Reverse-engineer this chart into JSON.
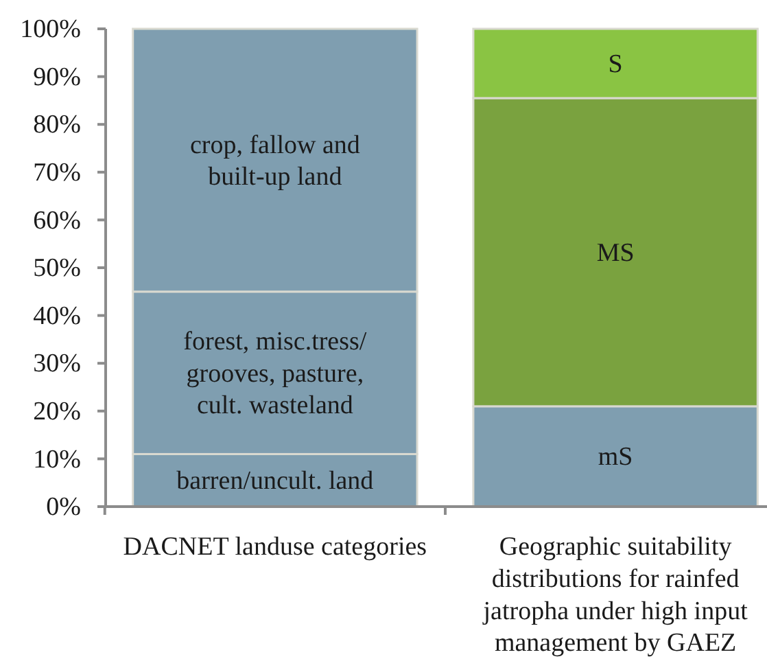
{
  "chart_data": {
    "type": "bar",
    "stacked": true,
    "categories": [
      "DACNET landuse categories",
      "Geographic suitability distributions for rainfed jatropha under high input management by GAEZ"
    ],
    "series": [
      {
        "name": "barren/uncult. land",
        "color": "#7f9eb0",
        "values": [
          11,
          null
        ]
      },
      {
        "name": "forest, misc.tress/ grooves, pasture, cult. wasteland",
        "color": "#7f9eb0",
        "values": [
          34,
          null
        ]
      },
      {
        "name": "crop, fallow and built-up land",
        "color": "#7f9eb0",
        "values": [
          55,
          null
        ]
      },
      {
        "name": "mS",
        "color": "#7f9eb0",
        "values": [
          null,
          21
        ]
      },
      {
        "name": "MS",
        "color": "#7aa23f",
        "values": [
          null,
          64.5
        ]
      },
      {
        "name": "S",
        "color": "#8ac443",
        "values": [
          null,
          14.5
        ]
      }
    ],
    "ylim": [
      0,
      100
    ],
    "yticks": [
      {
        "value": 0,
        "label": "0%"
      },
      {
        "value": 10,
        "label": "10%"
      },
      {
        "value": 20,
        "label": "20%"
      },
      {
        "value": 30,
        "label": "30%"
      },
      {
        "value": 40,
        "label": "40%"
      },
      {
        "value": 50,
        "label": "50%"
      },
      {
        "value": 60,
        "label": "60%"
      },
      {
        "value": 70,
        "label": "70%"
      },
      {
        "value": 80,
        "label": "80%"
      },
      {
        "value": 90,
        "label": "90%"
      },
      {
        "value": 100,
        "label": "100%"
      }
    ]
  }
}
